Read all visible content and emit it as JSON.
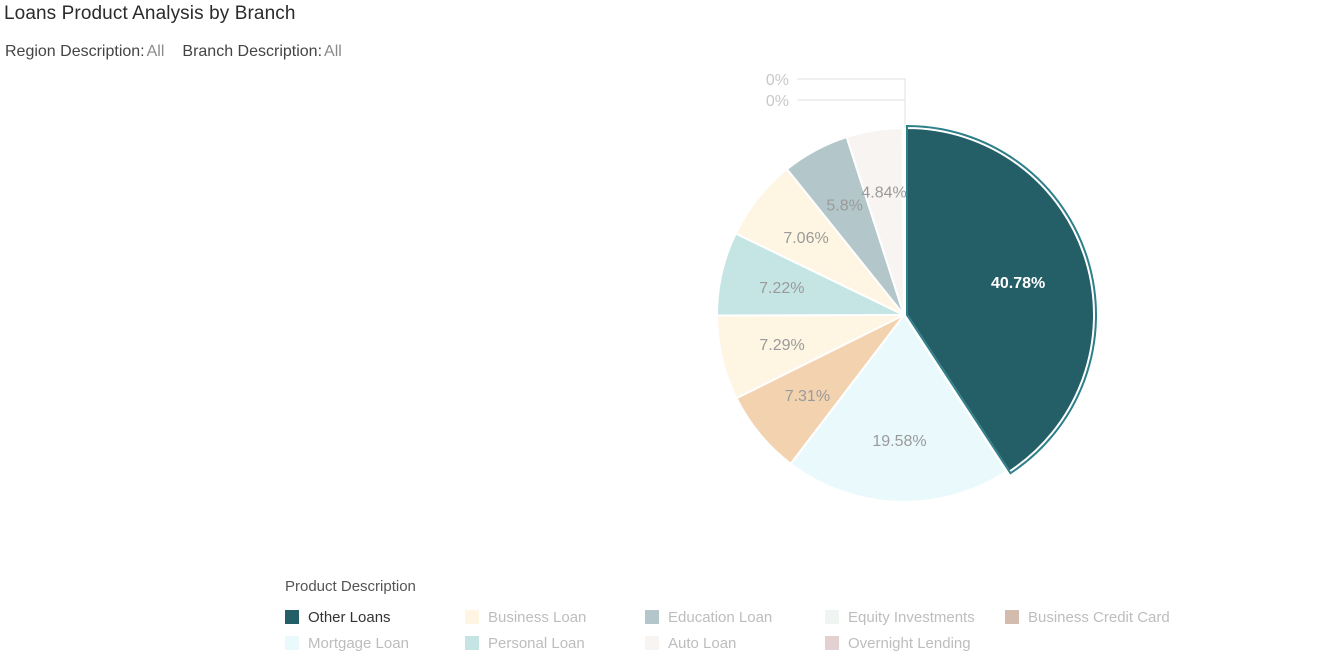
{
  "header": {
    "title": "Loans Product Analysis by Branch"
  },
  "filters": [
    {
      "label": "Region Description:",
      "value": "All"
    },
    {
      "label": "Branch Description:",
      "value": "All"
    }
  ],
  "legend": {
    "title": "Product Description",
    "items": [
      {
        "label": "Other Loans",
        "color": "#245E66",
        "active": true
      },
      {
        "label": "Business Loan",
        "color": "#FFF5E3",
        "active": false
      },
      {
        "label": "Education Loan",
        "color": "#B3C6CA",
        "active": false
      },
      {
        "label": "Equity Investments",
        "color": "#EFF6F1",
        "active": false
      },
      {
        "label": "Business Credit Card",
        "color": "#D3BCAE",
        "active": false
      },
      {
        "label": "Mortgage Loan",
        "color": "#EAF9FC",
        "active": false
      },
      {
        "label": "Personal Loan",
        "color": "#C5E5E5",
        "active": false
      },
      {
        "label": "Auto Loan",
        "color": "#F7F4F2",
        "active": false
      },
      {
        "label": "Overnight Lending",
        "color": "#E3D0D0",
        "active": false
      }
    ]
  },
  "chart_data": {
    "type": "pie",
    "title": "Loans Product Analysis by Branch",
    "legend_title": "Product Description",
    "legend_position": "bottom",
    "selected": "Other Loans",
    "slices": [
      {
        "label": "Other Loans",
        "value": 40.78,
        "display": "40.78%",
        "color": "#245E66"
      },
      {
        "label": "Mortgage Loan",
        "value": 19.58,
        "display": "19.58%",
        "color": "#EAF9FC"
      },
      {
        "label": "Business Credit Card",
        "value": 7.31,
        "display": "7.31%",
        "color": "#F3D3AF"
      },
      {
        "label": "Business Loan",
        "value": 7.29,
        "display": "7.29%",
        "color": "#FFF5E3"
      },
      {
        "label": "Personal Loan",
        "value": 7.22,
        "display": "7.22%",
        "color": "#C5E5E5"
      },
      {
        "label": "Business Loan (2)",
        "value": 7.06,
        "display": "7.06%",
        "color": "#FFF5E3"
      },
      {
        "label": "Education Loan",
        "value": 5.8,
        "display": "5.8%",
        "color": "#B3C6CA"
      },
      {
        "label": "Auto Loan",
        "value": 4.84,
        "display": "4.84%",
        "color": "#F7F4F2"
      },
      {
        "label": "Equity Investments",
        "value": 0,
        "display": "0%",
        "color": "#EFF6F1"
      },
      {
        "label": "Overnight Lending",
        "value": 0,
        "display": "0%",
        "color": "#E3D0D0"
      }
    ]
  }
}
